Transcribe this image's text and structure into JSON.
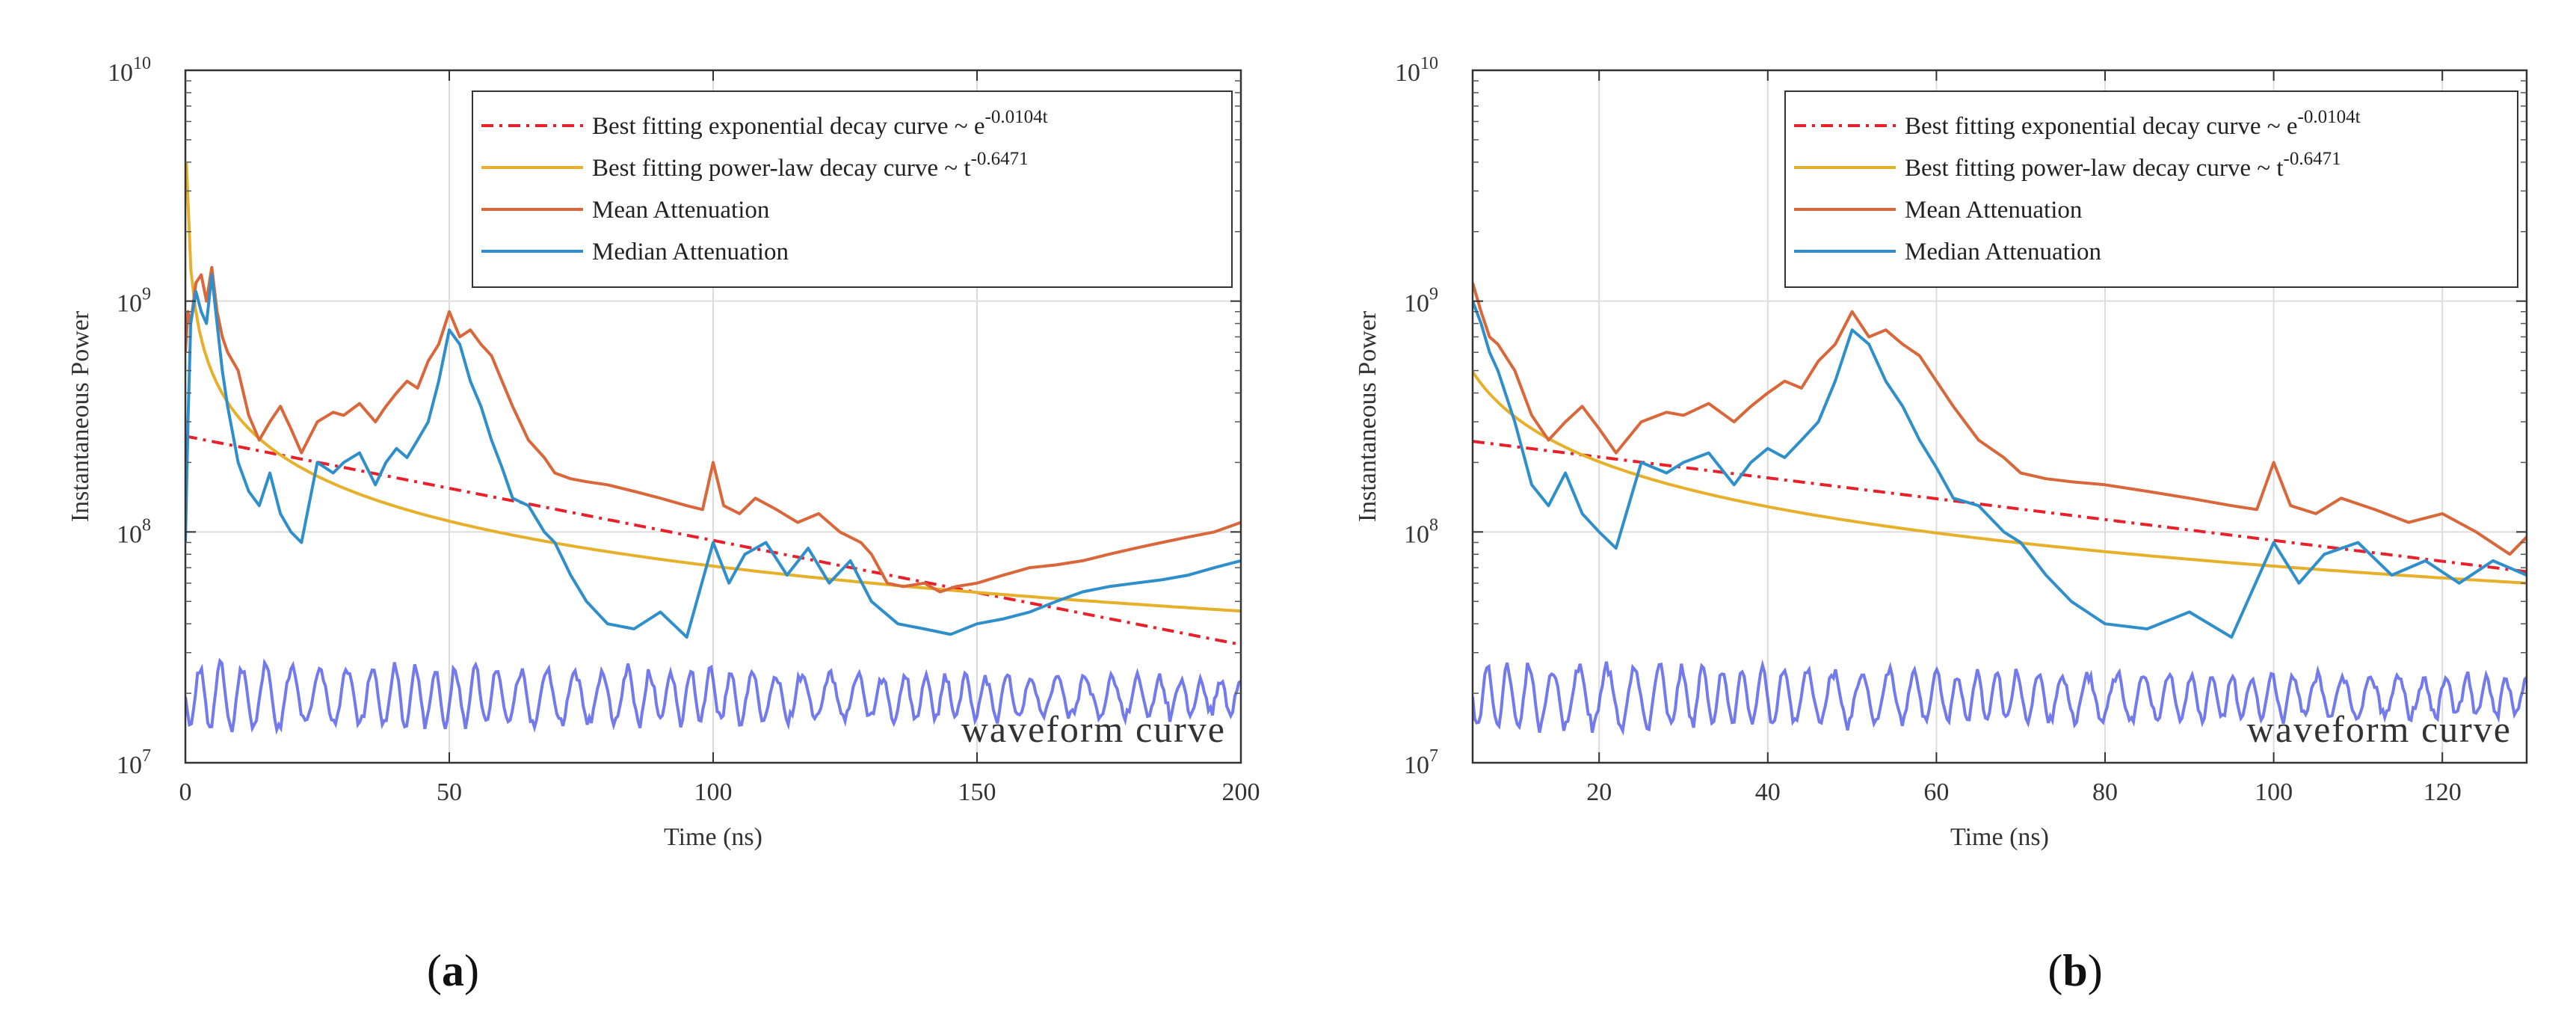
{
  "chart_data": [
    {
      "type": "line",
      "panel_label": "a",
      "xlabel": "Time (ns)",
      "ylabel": "Instantaneous Power",
      "xlim": [
        0,
        200
      ],
      "ylim": [
        10000000,
        10000000000
      ],
      "yscale": "log",
      "x_ticks": [
        0,
        50,
        100,
        150,
        200
      ],
      "y_ticks": [
        {
          "base": "10",
          "exp": "7"
        },
        {
          "base": "10",
          "exp": "8"
        },
        {
          "base": "10",
          "exp": "9"
        },
        {
          "base": "10",
          "exp": "10"
        }
      ],
      "grid": true,
      "legend_position": "top-right",
      "annotation": "waveform curve",
      "series": [
        {
          "name": "Best fitting exponential decay curve ~ e",
          "superscript": "-0.0104t",
          "color": "#e8202a",
          "style": "dashdot",
          "kind": "exp",
          "a": 260000000,
          "b": -0.0104
        },
        {
          "name": "Best fitting power-law decay curve ~ t",
          "superscript": "-0.6471",
          "color": "#e6b02a",
          "style": "solid",
          "kind": "power",
          "a": 1400000000,
          "b": -0.6471
        },
        {
          "name": "Mean Attenuation",
          "color": "#d9673a",
          "style": "solid",
          "kind": "points",
          "x": [
            0,
            0.5,
            1,
            2,
            3,
            4,
            5,
            6,
            7,
            8,
            10,
            12,
            14,
            16,
            18,
            20,
            22,
            25,
            28,
            30,
            33,
            36,
            38,
            40,
            42,
            44,
            46,
            48,
            50,
            52,
            54,
            56,
            58,
            60,
            62,
            65,
            68,
            70,
            73,
            76,
            80,
            85,
            90,
            95,
            98,
            100,
            102,
            105,
            108,
            112,
            116,
            120,
            124,
            128,
            130,
            133,
            136,
            140,
            143,
            146,
            150,
            155,
            160,
            165,
            170,
            175,
            180,
            185,
            190,
            195,
            200
          ],
          "y": [
            600000000,
            900000000,
            800000000,
            1200000000,
            1300000000,
            1000000000,
            1400000000,
            900000000,
            700000000,
            600000000,
            500000000,
            320000000,
            250000000,
            300000000,
            350000000,
            280000000,
            220000000,
            300000000,
            330000000,
            320000000,
            360000000,
            300000000,
            350000000,
            400000000,
            450000000,
            420000000,
            550000000,
            650000000,
            900000000,
            700000000,
            750000000,
            650000000,
            580000000,
            450000000,
            350000000,
            250000000,
            210000000,
            180000000,
            170000000,
            165000000,
            160000000,
            150000000,
            140000000,
            130000000,
            125000000,
            200000000,
            130000000,
            120000000,
            140000000,
            125000000,
            110000000,
            120000000,
            100000000,
            90000000,
            80000000,
            60000000,
            58000000,
            60000000,
            55000000,
            58000000,
            60000000,
            65000000,
            70000000,
            72000000,
            75000000,
            80000000,
            85000000,
            90000000,
            95000000,
            100000000,
            110000000
          ]
        },
        {
          "name": "Median Attenuation",
          "color": "#2f8fcb",
          "style": "solid",
          "kind": "points",
          "x": [
            0,
            0.5,
            1,
            2,
            3,
            4,
            5,
            6,
            7,
            8,
            10,
            12,
            14,
            16,
            18,
            20,
            22,
            25,
            28,
            30,
            33,
            36,
            38,
            40,
            42,
            44,
            46,
            48,
            50,
            52,
            54,
            56,
            58,
            60,
            62,
            65,
            68,
            70,
            73,
            76,
            80,
            85,
            90,
            95,
            100,
            103,
            106,
            110,
            114,
            118,
            122,
            126,
            130,
            135,
            140,
            145,
            150,
            155,
            160,
            165,
            170,
            175,
            180,
            185,
            190,
            195,
            200
          ],
          "y": [
            90000000,
            300000000,
            800000000,
            1100000000,
            900000000,
            800000000,
            1300000000,
            800000000,
            500000000,
            350000000,
            200000000,
            150000000,
            130000000,
            180000000,
            120000000,
            100000000,
            90000000,
            200000000,
            180000000,
            200000000,
            220000000,
            160000000,
            200000000,
            230000000,
            210000000,
            250000000,
            300000000,
            450000000,
            750000000,
            650000000,
            450000000,
            350000000,
            250000000,
            190000000,
            140000000,
            130000000,
            100000000,
            90000000,
            65000000,
            50000000,
            40000000,
            38000000,
            45000000,
            35000000,
            90000000,
            60000000,
            80000000,
            90000000,
            65000000,
            85000000,
            60000000,
            75000000,
            50000000,
            40000000,
            38000000,
            36000000,
            40000000,
            42000000,
            45000000,
            50000000,
            55000000,
            58000000,
            60000000,
            62000000,
            65000000,
            70000000,
            75000000
          ]
        }
      ]
    },
    {
      "type": "line",
      "panel_label": "b",
      "xlabel": "Time (ns)",
      "ylabel": "Instantaneous Power",
      "xlim": [
        5,
        130
      ],
      "ylim": [
        10000000,
        10000000000
      ],
      "yscale": "log",
      "x_ticks": [
        20,
        40,
        60,
        80,
        100,
        120
      ],
      "y_ticks": [
        {
          "base": "10",
          "exp": "7"
        },
        {
          "base": "10",
          "exp": "8"
        },
        {
          "base": "10",
          "exp": "9"
        },
        {
          "base": "10",
          "exp": "10"
        }
      ],
      "grid": true,
      "legend_position": "top-right",
      "annotation": "waveform curve",
      "series": [
        {
          "name": "Best fitting exponential decay curve ~ e",
          "superscript": "-0.0104t",
          "color": "#e8202a",
          "style": "dashdot",
          "kind": "exp",
          "a": 260000000,
          "b": -0.0104
        },
        {
          "name": "Best fitting power-law decay curve ~ t",
          "superscript": "-0.6471",
          "color": "#e6b02a",
          "style": "solid",
          "kind": "power",
          "a": 1400000000,
          "b": -0.6471
        },
        {
          "name": "Mean Attenuation",
          "color": "#d9673a",
          "style": "solid",
          "kind": "points",
          "x": [
            5,
            6,
            7,
            8,
            10,
            12,
            14,
            16,
            18,
            20,
            22,
            25,
            28,
            30,
            33,
            36,
            38,
            40,
            42,
            44,
            46,
            48,
            50,
            52,
            54,
            56,
            58,
            60,
            62,
            65,
            68,
            70,
            73,
            76,
            80,
            85,
            90,
            95,
            98,
            100,
            102,
            105,
            108,
            112,
            116,
            120,
            124,
            128,
            130
          ],
          "y": [
            1200000000,
            900000000,
            700000000,
            650000000,
            500000000,
            320000000,
            250000000,
            300000000,
            350000000,
            280000000,
            220000000,
            300000000,
            330000000,
            320000000,
            360000000,
            300000000,
            350000000,
            400000000,
            450000000,
            420000000,
            550000000,
            650000000,
            900000000,
            700000000,
            750000000,
            650000000,
            580000000,
            450000000,
            350000000,
            250000000,
            210000000,
            180000000,
            170000000,
            165000000,
            160000000,
            150000000,
            140000000,
            130000000,
            125000000,
            200000000,
            130000000,
            120000000,
            140000000,
            125000000,
            110000000,
            120000000,
            100000000,
            80000000,
            95000000
          ]
        },
        {
          "name": "Median Attenuation",
          "color": "#2f8fcb",
          "style": "solid",
          "kind": "points",
          "x": [
            5,
            6,
            7,
            8,
            10,
            12,
            14,
            16,
            18,
            20,
            22,
            25,
            28,
            30,
            33,
            36,
            38,
            40,
            42,
            44,
            46,
            48,
            50,
            52,
            54,
            56,
            58,
            60,
            62,
            65,
            68,
            70,
            73,
            76,
            80,
            85,
            90,
            95,
            100,
            103,
            106,
            110,
            114,
            118,
            122,
            126,
            130
          ],
          "y": [
            1000000000,
            800000000,
            600000000,
            500000000,
            300000000,
            160000000,
            130000000,
            180000000,
            120000000,
            100000000,
            85000000,
            200000000,
            180000000,
            200000000,
            220000000,
            160000000,
            200000000,
            230000000,
            210000000,
            250000000,
            300000000,
            450000000,
            750000000,
            650000000,
            450000000,
            350000000,
            250000000,
            190000000,
            140000000,
            130000000,
            100000000,
            90000000,
            65000000,
            50000000,
            40000000,
            38000000,
            45000000,
            35000000,
            90000000,
            60000000,
            80000000,
            90000000,
            65000000,
            75000000,
            60000000,
            75000000,
            65000000
          ]
        }
      ]
    }
  ]
}
